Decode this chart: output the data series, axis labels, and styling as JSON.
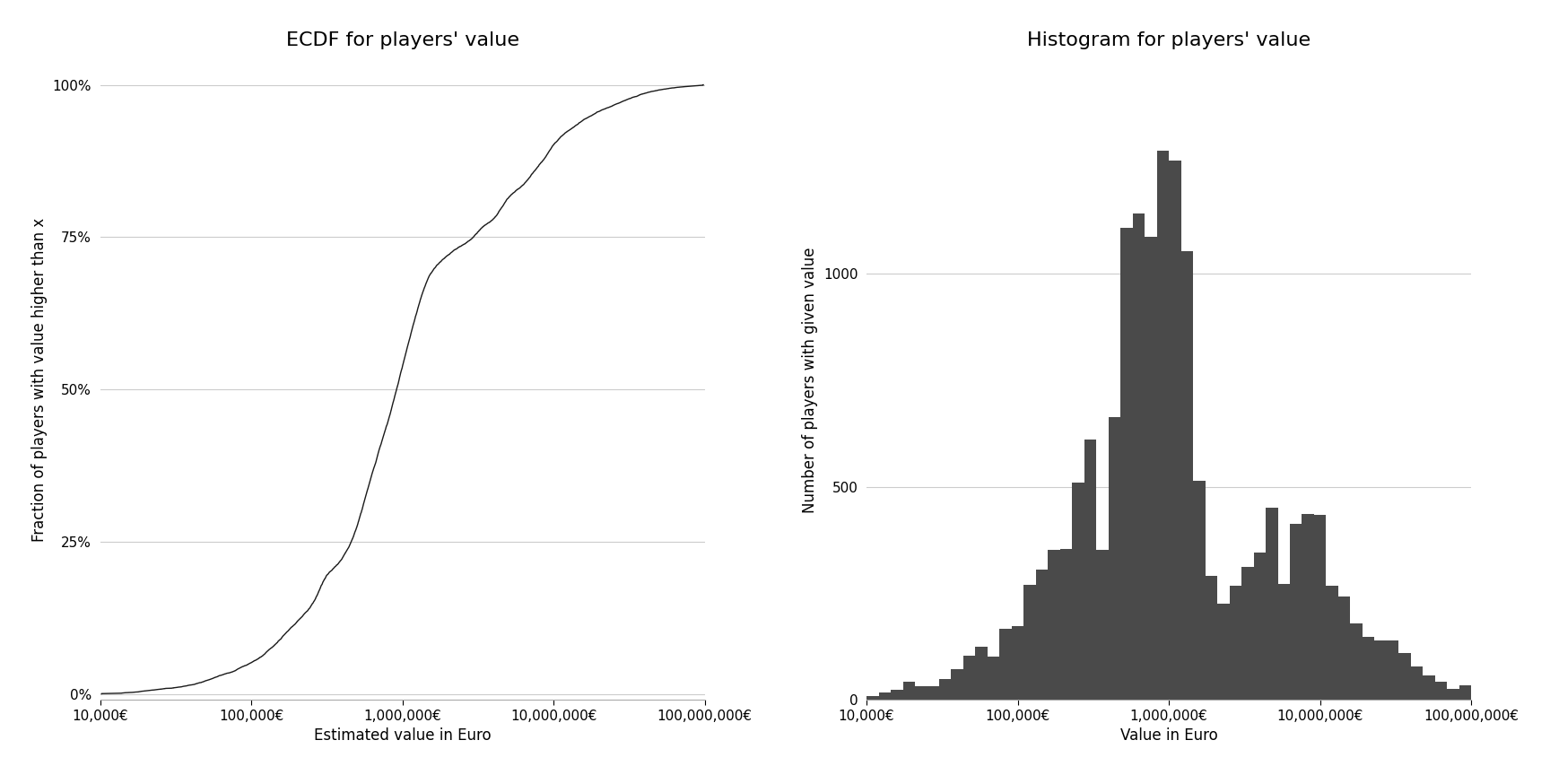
{
  "ecdf_title": "ECDF for players' value",
  "hist_title": "Histogram for players' value",
  "ecdf_xlabel": "Estimated value in Euro",
  "ecdf_ylabel": "Fraction of players with value higher than x",
  "hist_xlabel": "Value in Euro",
  "hist_ylabel": "Number of players with given value",
  "xmin": 4.0,
  "xmax": 8.0,
  "ecdf_yticks": [
    0,
    0.25,
    0.5,
    0.75,
    1.0
  ],
  "ecdf_ytick_labels": [
    "0%",
    "25%",
    "50%",
    "75%",
    "100%"
  ],
  "hist_yticks": [
    0,
    500,
    1000
  ],
  "xtick_positions": [
    4.0,
    5.0,
    6.0,
    7.0,
    8.0
  ],
  "xtick_labels": [
    "10,000€",
    "100,000€",
    "1,000,000€",
    "10,000,000€",
    "100,000,000€"
  ],
  "bar_color": "#4a4a4a",
  "line_color": "#1a1a1a",
  "background_color": "#ffffff",
  "grid_color": "#cccccc",
  "n_players": 18000,
  "hist_bins": 50,
  "title_fontsize": 16,
  "label_fontsize": 12,
  "tick_fontsize": 11,
  "fig_width": 17.28,
  "fig_height": 8.64,
  "dpi": 100
}
